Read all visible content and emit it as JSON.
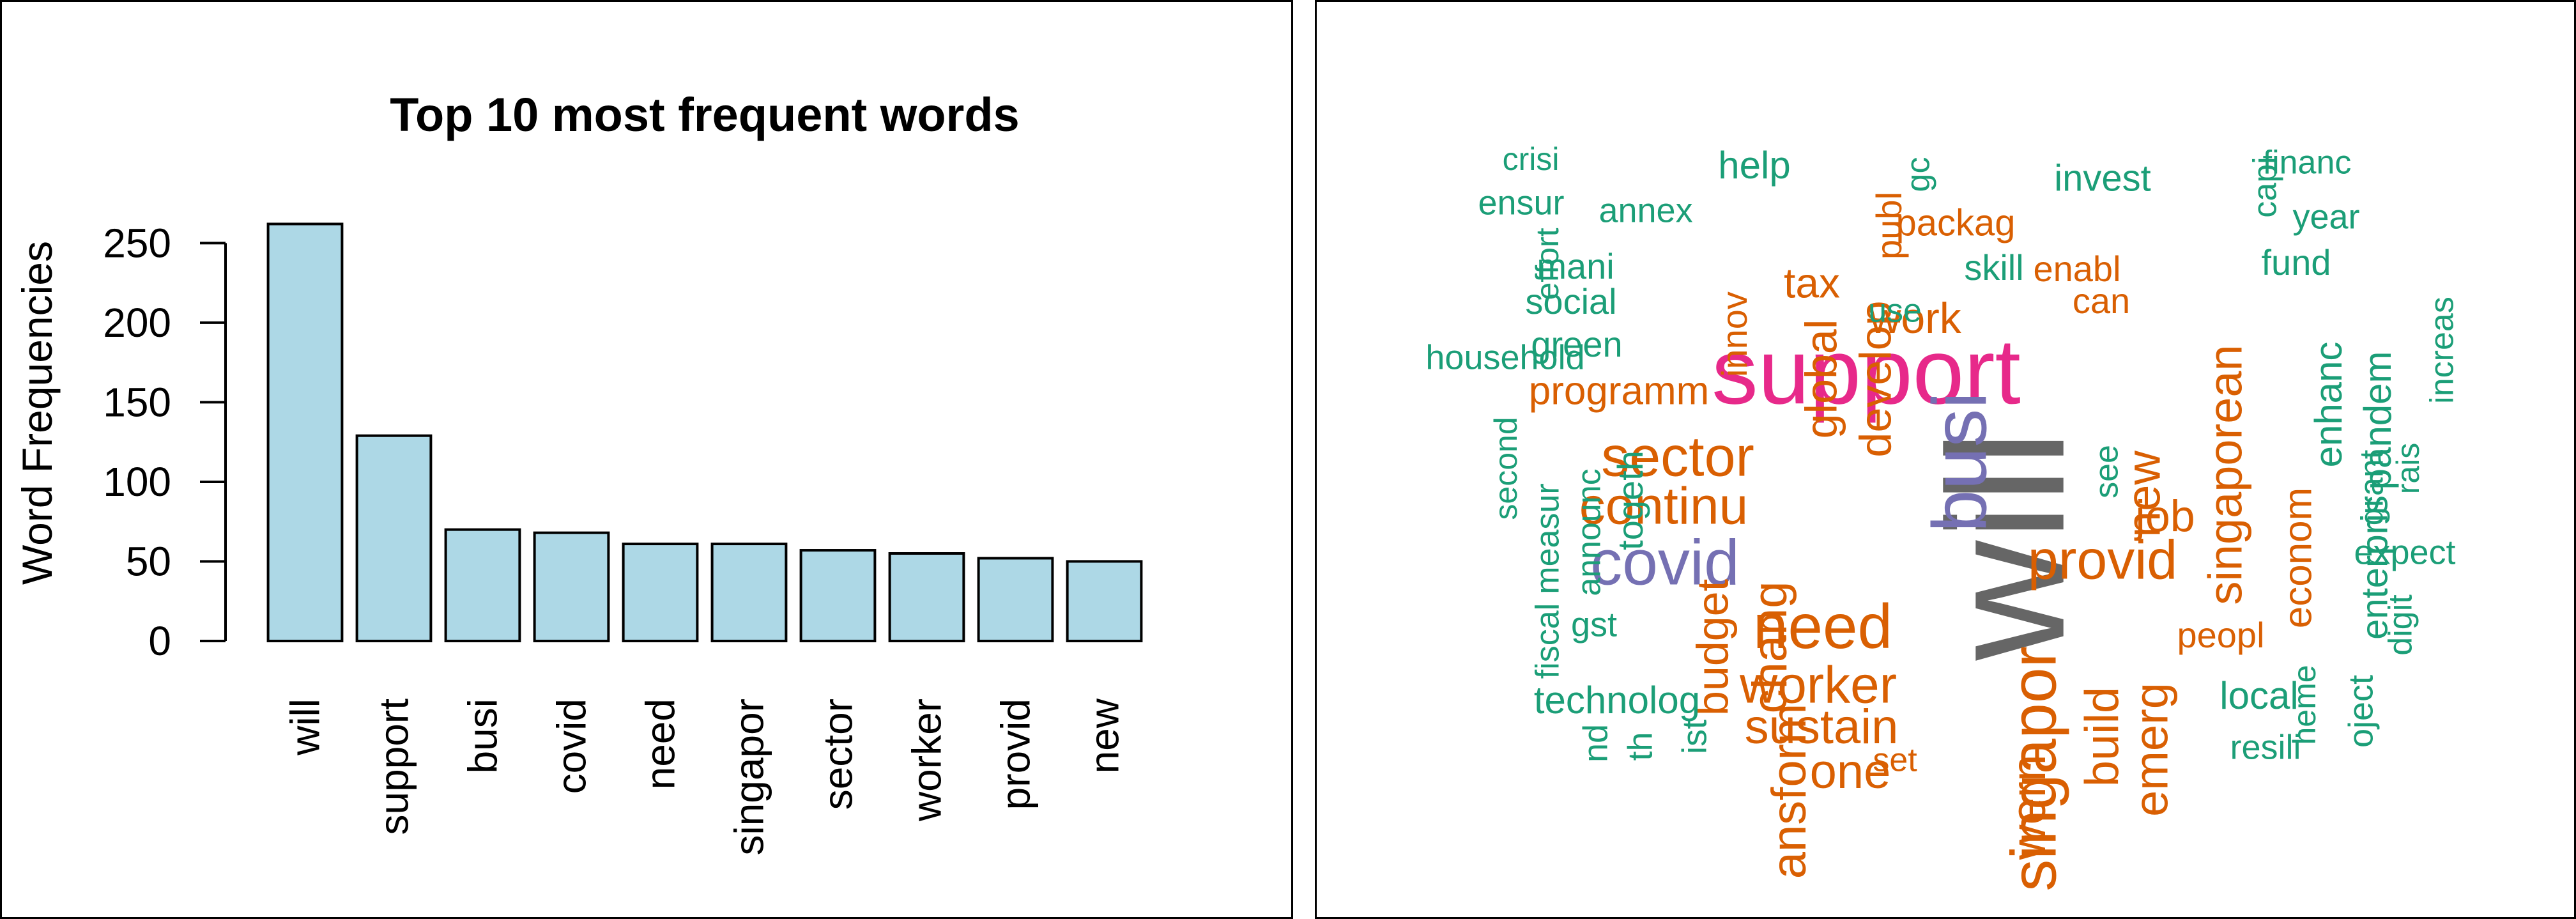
{
  "chart_data": [
    {
      "type": "bar",
      "title": "Top 10 most frequent words",
      "xlabel": "",
      "ylabel": "Word Frequencies",
      "categories": [
        "will",
        "support",
        "busi",
        "covid",
        "need",
        "singapor",
        "sector",
        "worker",
        "provid",
        "new"
      ],
      "values": [
        262,
        129,
        70,
        68,
        61,
        61,
        57,
        55,
        52,
        50
      ],
      "yticks": [
        0,
        50,
        100,
        150,
        200,
        250
      ],
      "ylim": [
        0,
        265
      ],
      "bar_color": "#add8e6",
      "grid": false
    },
    {
      "type": "wordcloud",
      "colors": {
        "teal": "#1b9e77",
        "orange": "#d95f02",
        "purple": "#7570b3",
        "magenta": "#e7298a",
        "gray": "#666666"
      },
      "words": [
        {
          "text": "will",
          "color": "gray"
        },
        {
          "text": "support",
          "color": "magenta"
        },
        {
          "text": "busi",
          "color": "purple"
        },
        {
          "text": "covid",
          "color": "purple"
        },
        {
          "text": "need",
          "color": "orange"
        },
        {
          "text": "singapor",
          "color": "orange"
        },
        {
          "text": "sector",
          "color": "orange"
        },
        {
          "text": "worker",
          "color": "orange"
        },
        {
          "text": "provid",
          "color": "orange"
        },
        {
          "text": "new",
          "color": "orange"
        },
        {
          "text": "continu",
          "color": "orange"
        },
        {
          "text": "singaporean",
          "color": "orange"
        },
        {
          "text": "sustain",
          "color": "orange"
        },
        {
          "text": "global",
          "color": "orange"
        },
        {
          "text": "develop",
          "color": "orange"
        },
        {
          "text": "job",
          "color": "orange"
        },
        {
          "text": "work",
          "color": "orange"
        },
        {
          "text": "tax",
          "color": "orange"
        },
        {
          "text": "chang",
          "color": "orange"
        },
        {
          "text": "budget",
          "color": "orange"
        },
        {
          "text": "build",
          "color": "orange"
        },
        {
          "text": "emerg",
          "color": "orange"
        },
        {
          "text": "econom",
          "color": "orange"
        },
        {
          "text": "programm",
          "color": "orange"
        },
        {
          "text": "packag",
          "color": "orange"
        },
        {
          "text": "enabl",
          "color": "orange"
        },
        {
          "text": "can",
          "color": "orange"
        },
        {
          "text": "peopl",
          "color": "orange"
        },
        {
          "text": "innov",
          "color": "orange"
        },
        {
          "text": "publ",
          "color": "orange"
        },
        {
          "text": "ansform",
          "color": "orange"
        },
        {
          "text": "one",
          "color": "orange"
        },
        {
          "text": "wern",
          "color": "orange"
        },
        {
          "text": "pandem",
          "color": "teal"
        },
        {
          "text": "enhanc",
          "color": "teal"
        },
        {
          "text": "enterpris",
          "color": "teal"
        },
        {
          "text": "fund",
          "color": "teal"
        },
        {
          "text": "invest",
          "color": "teal"
        },
        {
          "text": "skill",
          "color": "teal"
        },
        {
          "text": "use",
          "color": "teal"
        },
        {
          "text": "green",
          "color": "teal"
        },
        {
          "text": "social",
          "color": "teal"
        },
        {
          "text": "mani",
          "color": "teal"
        },
        {
          "text": "ensur",
          "color": "teal"
        },
        {
          "text": "annex",
          "color": "teal"
        },
        {
          "text": "help",
          "color": "teal"
        },
        {
          "text": "crisi",
          "color": "teal"
        },
        {
          "text": "household",
          "color": "teal"
        },
        {
          "text": "effort",
          "color": "teal"
        },
        {
          "text": "year",
          "color": "teal"
        },
        {
          "text": "financ",
          "color": "teal"
        },
        {
          "text": "capi",
          "color": "teal"
        },
        {
          "text": "increas",
          "color": "teal"
        },
        {
          "text": "grant",
          "color": "teal"
        },
        {
          "text": "rais",
          "color": "teal"
        },
        {
          "text": "expect",
          "color": "teal"
        },
        {
          "text": "local",
          "color": "teal"
        },
        {
          "text": "resili",
          "color": "teal"
        },
        {
          "text": "digit",
          "color": "teal"
        },
        {
          "text": "oject",
          "color": "teal"
        },
        {
          "text": "heme",
          "color": "teal"
        },
        {
          "text": "technolog",
          "color": "teal"
        },
        {
          "text": "gst",
          "color": "teal"
        },
        {
          "text": "togeth",
          "color": "teal"
        },
        {
          "text": "announc",
          "color": "teal"
        },
        {
          "text": "measur",
          "color": "teal"
        },
        {
          "text": "second",
          "color": "teal"
        },
        {
          "text": "fiscal",
          "color": "teal"
        },
        {
          "text": "see",
          "color": "teal"
        },
        {
          "text": "ist",
          "color": "teal"
        },
        {
          "text": "th",
          "color": "teal"
        },
        {
          "text": "nd",
          "color": "teal"
        },
        {
          "text": "gc",
          "color": "teal"
        },
        {
          "text": "set",
          "color": "orange"
        }
      ]
    }
  ]
}
